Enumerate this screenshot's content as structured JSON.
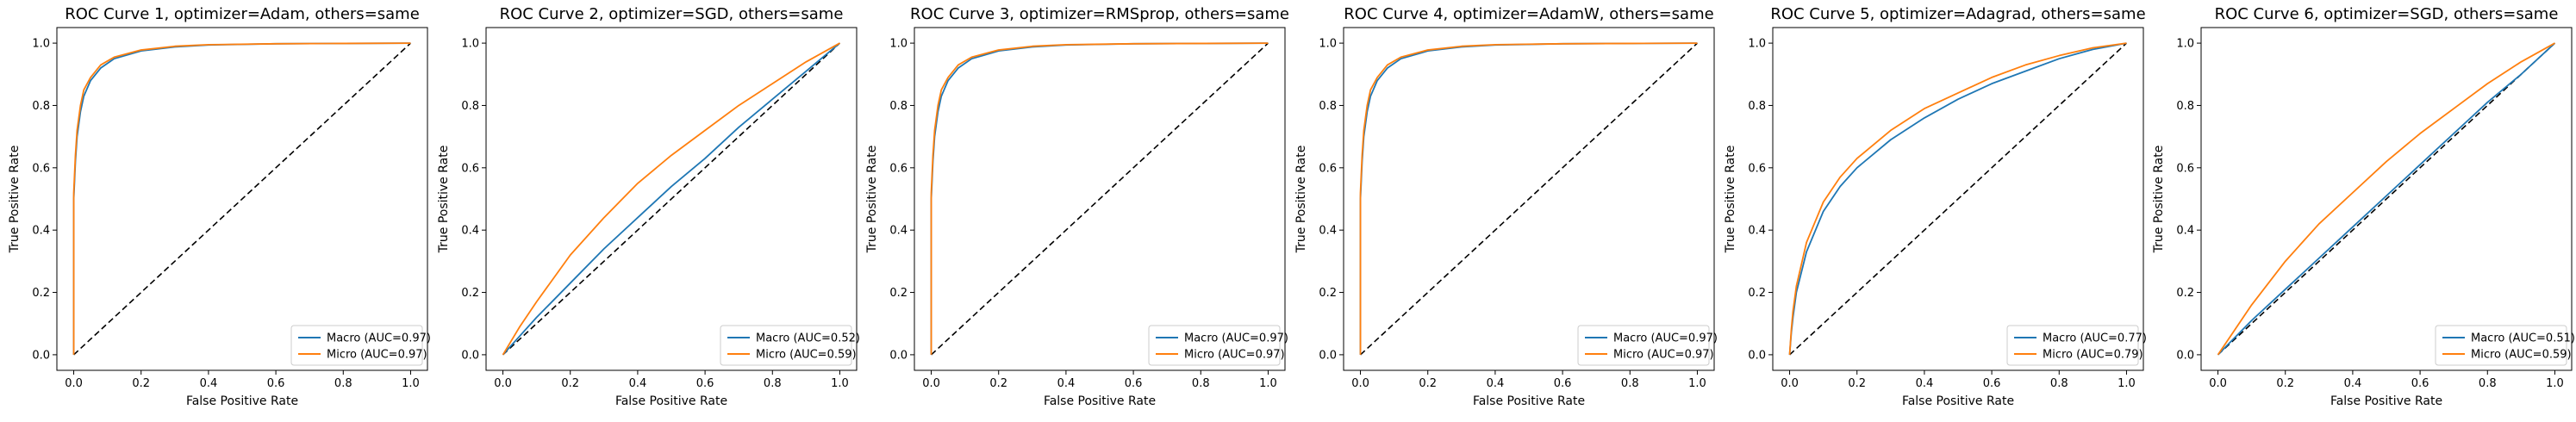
{
  "colors": {
    "macro": "#1f77b4",
    "micro": "#ff7f0e",
    "diagonal": "#000000",
    "axes": "#000000",
    "legend_border": "#cccccc",
    "background": "#ffffff"
  },
  "chart_data": [
    {
      "type": "line",
      "title": "ROC Curve 1, optimizer=Adam, others=same",
      "xlabel": "False Positive Rate",
      "ylabel": "True Positive Rate",
      "xlim": [
        -0.05,
        1.05
      ],
      "ylim": [
        -0.05,
        1.05
      ],
      "xticks": [
        "0.0",
        "0.2",
        "0.4",
        "0.6",
        "0.8",
        "1.0"
      ],
      "yticks": [
        "0.0",
        "0.2",
        "0.4",
        "0.6",
        "0.8",
        "1.0"
      ],
      "legend_position": "lower right",
      "grid": false,
      "series": [
        {
          "name": "Macro (AUC=0.97)",
          "color": "#1f77b4",
          "x": [
            0,
            0,
            0.005,
            0.01,
            0.02,
            0.03,
            0.05,
            0.08,
            0.12,
            0.2,
            0.3,
            0.4,
            0.6,
            0.8,
            1.0
          ],
          "y": [
            0,
            0.5,
            0.62,
            0.7,
            0.78,
            0.83,
            0.88,
            0.92,
            0.95,
            0.975,
            0.988,
            0.994,
            0.998,
            0.999,
            1.0
          ]
        },
        {
          "name": "Micro (AUC=0.97)",
          "color": "#ff7f0e",
          "x": [
            0,
            0,
            0.005,
            0.01,
            0.02,
            0.03,
            0.05,
            0.08,
            0.12,
            0.2,
            0.3,
            0.4,
            0.6,
            0.8,
            1.0
          ],
          "y": [
            0,
            0.52,
            0.64,
            0.72,
            0.8,
            0.85,
            0.89,
            0.93,
            0.955,
            0.978,
            0.99,
            0.995,
            0.998,
            0.999,
            1.0
          ]
        }
      ],
      "diagonal": true
    },
    {
      "type": "line",
      "title": "ROC Curve 2, optimizer=SGD, others=same",
      "xlabel": "False Positive Rate",
      "ylabel": "True Positive Rate",
      "xlim": [
        -0.05,
        1.05
      ],
      "ylim": [
        -0.05,
        1.05
      ],
      "xticks": [
        "0.0",
        "0.2",
        "0.4",
        "0.6",
        "0.8",
        "1.0"
      ],
      "yticks": [
        "0.0",
        "0.2",
        "0.4",
        "0.6",
        "0.8",
        "1.0"
      ],
      "legend_position": "lower right",
      "grid": false,
      "series": [
        {
          "name": "Macro (AUC=0.52)",
          "color": "#1f77b4",
          "x": [
            0,
            0.05,
            0.1,
            0.2,
            0.3,
            0.4,
            0.5,
            0.6,
            0.7,
            0.8,
            0.9,
            1.0
          ],
          "y": [
            0,
            0.06,
            0.12,
            0.23,
            0.34,
            0.44,
            0.54,
            0.63,
            0.73,
            0.82,
            0.91,
            1.0
          ]
        },
        {
          "name": "Micro (AUC=0.59)",
          "color": "#ff7f0e",
          "x": [
            0,
            0.05,
            0.1,
            0.2,
            0.3,
            0.4,
            0.5,
            0.6,
            0.7,
            0.8,
            0.9,
            1.0
          ],
          "y": [
            0,
            0.09,
            0.17,
            0.32,
            0.44,
            0.55,
            0.64,
            0.72,
            0.8,
            0.87,
            0.94,
            1.0
          ]
        }
      ],
      "diagonal": true
    },
    {
      "type": "line",
      "title": "ROC Curve 3, optimizer=RMSprop, others=same",
      "xlabel": "False Positive Rate",
      "ylabel": "True Positive Rate",
      "xlim": [
        -0.05,
        1.05
      ],
      "ylim": [
        -0.05,
        1.05
      ],
      "xticks": [
        "0.0",
        "0.2",
        "0.4",
        "0.6",
        "0.8",
        "1.0"
      ],
      "yticks": [
        "0.0",
        "0.2",
        "0.4",
        "0.6",
        "0.8",
        "1.0"
      ],
      "legend_position": "lower right",
      "grid": false,
      "series": [
        {
          "name": "Macro (AUC=0.97)",
          "color": "#1f77b4",
          "x": [
            0,
            0,
            0.005,
            0.01,
            0.02,
            0.03,
            0.05,
            0.08,
            0.12,
            0.2,
            0.3,
            0.4,
            0.6,
            0.8,
            1.0
          ],
          "y": [
            0,
            0.5,
            0.62,
            0.7,
            0.78,
            0.83,
            0.88,
            0.92,
            0.95,
            0.975,
            0.988,
            0.994,
            0.998,
            0.999,
            1.0
          ]
        },
        {
          "name": "Micro (AUC=0.97)",
          "color": "#ff7f0e",
          "x": [
            0,
            0,
            0.005,
            0.01,
            0.02,
            0.03,
            0.05,
            0.08,
            0.12,
            0.2,
            0.3,
            0.4,
            0.6,
            0.8,
            1.0
          ],
          "y": [
            0,
            0.52,
            0.64,
            0.72,
            0.8,
            0.85,
            0.89,
            0.93,
            0.955,
            0.978,
            0.99,
            0.995,
            0.998,
            0.999,
            1.0
          ]
        }
      ],
      "diagonal": true
    },
    {
      "type": "line",
      "title": "ROC Curve 4, optimizer=AdamW, others=same",
      "xlabel": "False Positive Rate",
      "ylabel": "True Positive Rate",
      "xlim": [
        -0.05,
        1.05
      ],
      "ylim": [
        -0.05,
        1.05
      ],
      "xticks": [
        "0.0",
        "0.2",
        "0.4",
        "0.6",
        "0.8",
        "1.0"
      ],
      "yticks": [
        "0.0",
        "0.2",
        "0.4",
        "0.6",
        "0.8",
        "1.0"
      ],
      "legend_position": "lower right",
      "grid": false,
      "series": [
        {
          "name": "Macro (AUC=0.97)",
          "color": "#1f77b4",
          "x": [
            0,
            0,
            0.005,
            0.01,
            0.02,
            0.03,
            0.05,
            0.08,
            0.12,
            0.2,
            0.3,
            0.4,
            0.6,
            0.8,
            1.0
          ],
          "y": [
            0,
            0.5,
            0.62,
            0.7,
            0.78,
            0.83,
            0.88,
            0.92,
            0.95,
            0.975,
            0.988,
            0.994,
            0.998,
            0.999,
            1.0
          ]
        },
        {
          "name": "Micro (AUC=0.97)",
          "color": "#ff7f0e",
          "x": [
            0,
            0,
            0.005,
            0.01,
            0.02,
            0.03,
            0.05,
            0.08,
            0.12,
            0.2,
            0.3,
            0.4,
            0.6,
            0.8,
            1.0
          ],
          "y": [
            0,
            0.52,
            0.64,
            0.72,
            0.8,
            0.85,
            0.89,
            0.93,
            0.955,
            0.978,
            0.99,
            0.995,
            0.998,
            0.999,
            1.0
          ]
        }
      ],
      "diagonal": true
    },
    {
      "type": "line",
      "title": "ROC Curve 5, optimizer=Adagrad, others=same",
      "xlabel": "False Positive Rate",
      "ylabel": "True Positive Rate",
      "xlim": [
        -0.05,
        1.05
      ],
      "ylim": [
        -0.05,
        1.05
      ],
      "xticks": [
        "0.0",
        "0.2",
        "0.4",
        "0.6",
        "0.8",
        "1.0"
      ],
      "yticks": [
        "0.0",
        "0.2",
        "0.4",
        "0.6",
        "0.8",
        "1.0"
      ],
      "legend_position": "lower right",
      "grid": false,
      "series": [
        {
          "name": "Macro (AUC=0.77)",
          "color": "#1f77b4",
          "x": [
            0,
            0.005,
            0.01,
            0.02,
            0.05,
            0.1,
            0.15,
            0.2,
            0.3,
            0.4,
            0.5,
            0.6,
            0.7,
            0.8,
            0.9,
            1.0
          ],
          "y": [
            0,
            0.07,
            0.12,
            0.2,
            0.33,
            0.46,
            0.54,
            0.6,
            0.69,
            0.76,
            0.82,
            0.87,
            0.91,
            0.95,
            0.98,
            1.0
          ]
        },
        {
          "name": "Micro (AUC=0.79)",
          "color": "#ff7f0e",
          "x": [
            0,
            0.005,
            0.01,
            0.02,
            0.05,
            0.1,
            0.15,
            0.2,
            0.3,
            0.4,
            0.5,
            0.6,
            0.7,
            0.8,
            0.9,
            1.0
          ],
          "y": [
            0,
            0.08,
            0.14,
            0.22,
            0.36,
            0.49,
            0.57,
            0.63,
            0.72,
            0.79,
            0.84,
            0.89,
            0.93,
            0.96,
            0.985,
            1.0
          ]
        }
      ],
      "diagonal": true
    },
    {
      "type": "line",
      "title": "ROC Curve 6, optimizer=SGD, others=same",
      "xlabel": "False Positive Rate",
      "ylabel": "True Positive Rate",
      "xlim": [
        -0.05,
        1.05
      ],
      "ylim": [
        -0.05,
        1.05
      ],
      "xticks": [
        "0.0",
        "0.2",
        "0.4",
        "0.6",
        "0.8",
        "1.0"
      ],
      "yticks": [
        "0.0",
        "0.2",
        "0.4",
        "0.6",
        "0.8",
        "1.0"
      ],
      "legend_position": "lower right",
      "grid": false,
      "series": [
        {
          "name": "Macro (AUC=0.51)",
          "color": "#1f77b4",
          "x": [
            0,
            0.1,
            0.2,
            0.3,
            0.4,
            0.5,
            0.6,
            0.7,
            0.8,
            0.9,
            1.0
          ],
          "y": [
            0,
            0.11,
            0.21,
            0.31,
            0.41,
            0.51,
            0.61,
            0.71,
            0.81,
            0.9,
            1.0
          ]
        },
        {
          "name": "Micro (AUC=0.59)",
          "color": "#ff7f0e",
          "x": [
            0,
            0.05,
            0.1,
            0.2,
            0.3,
            0.4,
            0.5,
            0.6,
            0.7,
            0.8,
            0.9,
            1.0
          ],
          "y": [
            0,
            0.08,
            0.16,
            0.3,
            0.42,
            0.52,
            0.62,
            0.71,
            0.79,
            0.87,
            0.94,
            1.0
          ]
        }
      ],
      "diagonal": true
    }
  ]
}
